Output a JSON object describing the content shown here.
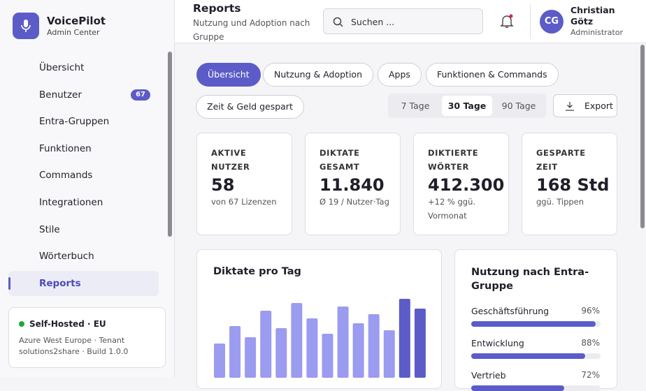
{
  "sidebar": {
    "brand": "VoicePilot",
    "subtitle": "Admin Center",
    "nav": [
      {
        "label": "Übersicht"
      },
      {
        "label": "Benutzer",
        "badge": "67"
      },
      {
        "label": "Entra-Gruppen"
      },
      {
        "label": "Funktionen"
      },
      {
        "label": "Commands"
      },
      {
        "label": "Integrationen"
      },
      {
        "label": "Stile"
      },
      {
        "label": "Wörterbuch"
      },
      {
        "label": "Reports",
        "active": true
      }
    ],
    "status": {
      "title": "Self-Hosted · EU",
      "text": "Azure West Europe · Tenant solutions2share · Build 1.0.0"
    }
  },
  "header": {
    "title": "Reports",
    "subtitle": "Nutzung und Adoption nach Gruppe",
    "search": "Suchen ...",
    "avatar": "CG",
    "user": "Christian Götz",
    "role": "Administrator"
  },
  "tabs": [
    {
      "label": "Übersicht",
      "active": true
    },
    {
      "label": "Nutzung & Adoption"
    },
    {
      "label": "Apps"
    },
    {
      "label": "Funktionen & Commands"
    },
    {
      "label": "Zeit & Geld gespart"
    }
  ],
  "ranges": [
    {
      "label": "7 Tage"
    },
    {
      "label": "30 Tage",
      "active": true
    },
    {
      "label": "90 Tage"
    }
  ],
  "export": "Export",
  "stats": [
    {
      "label": "AKTIVE NUTZER",
      "value": "58",
      "note": "von 67 Lizenzen"
    },
    {
      "label": "DIKTATE GESAMT",
      "value": "11.840",
      "note": "Ø 19 / Nutzer·Tag"
    },
    {
      "label": "DIKTIERTE WÖRTER",
      "value": "412.300",
      "note": "+12 % ggü. Vormonat"
    },
    {
      "label": "GESPARTE ZEIT",
      "value": "168 Std",
      "note": "ggü. Tippen"
    }
  ],
  "chart_data": {
    "type": "bar",
    "title": "Diktate pro Tag",
    "values": [
      49,
      74,
      58,
      96,
      71,
      107,
      85,
      63,
      102,
      78,
      91,
      68,
      113,
      99
    ],
    "colors": [
      "#9b9bf0",
      "#9b9bf0",
      "#9b9bf0",
      "#9b9bf0",
      "#9b9bf0",
      "#9b9bf0",
      "#9b9bf0",
      "#9b9bf0",
      "#9b9bf0",
      "#9b9bf0",
      "#9b9bf0",
      "#9b9bf0",
      "#5c5cc8",
      "#5c5cc8"
    ]
  },
  "groups": {
    "title": "Nutzung nach Entra-Gruppe",
    "rows": [
      {
        "name": "Geschäftsführung",
        "value": 96,
        "value_label": "96%"
      },
      {
        "name": "Entwicklung",
        "value": 88,
        "value_label": "88%"
      },
      {
        "name": "Vertrieb",
        "value": 72,
        "value_label": "72%"
      }
    ]
  }
}
